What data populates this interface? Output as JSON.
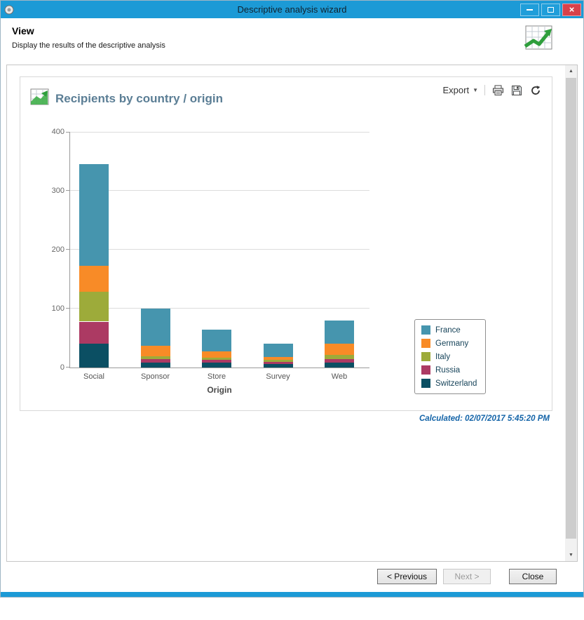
{
  "window": {
    "title": "Descriptive analysis wizard",
    "controls": {
      "minimize": "minimize",
      "maximize": "maximize",
      "close": "close"
    }
  },
  "header": {
    "title": "View",
    "subtitle": "Display the results of the descriptive analysis"
  },
  "toolbar": {
    "export_label": "Export",
    "icons": [
      "print-icon",
      "save-icon",
      "refresh-icon"
    ]
  },
  "chart": {
    "title": "Recipients by country / origin"
  },
  "chart_data": {
    "type": "bar",
    "stacked": true,
    "title": "Recipients by country / origin",
    "categories": [
      "Social",
      "Sponsor",
      "Store",
      "Survey",
      "Web"
    ],
    "series": [
      {
        "name": "Switzerland",
        "color": "#0b4f63",
        "values": [
          40,
          8,
          8,
          6,
          8
        ]
      },
      {
        "name": "Russia",
        "color": "#ac3a63",
        "values": [
          38,
          6,
          5,
          4,
          6
        ]
      },
      {
        "name": "Italy",
        "color": "#9dab3a",
        "values": [
          50,
          5,
          4,
          3,
          8
        ]
      },
      {
        "name": "Germany",
        "color": "#f88b27",
        "values": [
          45,
          18,
          10,
          5,
          18
        ]
      },
      {
        "name": "France",
        "color": "#4695ae",
        "values": [
          172,
          63,
          37,
          22,
          40
        ]
      }
    ],
    "legend_order": [
      "France",
      "Germany",
      "Italy",
      "Russia",
      "Switzerland"
    ],
    "legend_position": "right",
    "grid": true,
    "xlabel": "Origin",
    "ylabel": "",
    "ylim": [
      0,
      400
    ],
    "yticks": [
      0,
      100,
      200,
      300,
      400
    ]
  },
  "status": {
    "calculated": "Calculated: 02/07/2017 5:45:20 PM"
  },
  "buttons": {
    "previous": "< Previous",
    "next": "Next >",
    "close": "Close"
  }
}
